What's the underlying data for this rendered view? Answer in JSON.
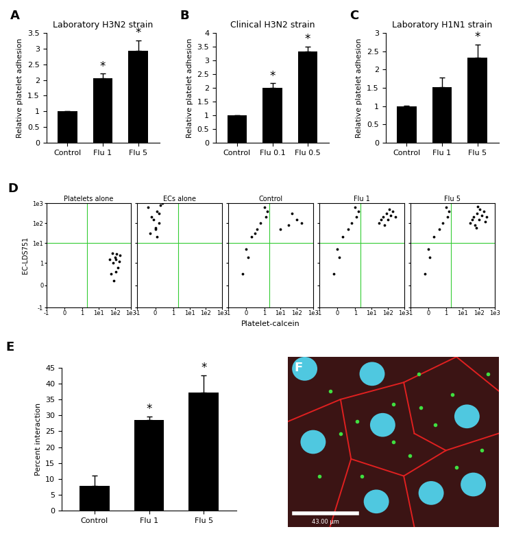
{
  "chart_data": [
    {
      "type": "bar",
      "panel": "A",
      "title": "Laboratory H3N2 strain",
      "ylabel": "Relative platelet adhesion",
      "categories": [
        "Control",
        "Flu 1",
        "Flu 5"
      ],
      "values": [
        1.0,
        2.05,
        2.93
      ],
      "errors": [
        0.01,
        0.15,
        0.33
      ],
      "color": "#000000",
      "ylim": [
        0,
        3.5
      ],
      "yticks": [
        0,
        0.5,
        1,
        1.5,
        2,
        2.5,
        3,
        3.5
      ],
      "annotations": [
        {
          "category": "Flu 1",
          "text": "*"
        },
        {
          "category": "Flu 5",
          "text": "*"
        }
      ]
    },
    {
      "type": "bar",
      "panel": "B",
      "title": "Clinical H3N2 strain",
      "ylabel": "Relative platelet adhesion",
      "categories": [
        "Control",
        "Flu 0.1",
        "Flu 0.5"
      ],
      "values": [
        1.0,
        2.0,
        3.33
      ],
      "errors": [
        0.01,
        0.17,
        0.17
      ],
      "color": "#000000",
      "ylim": [
        0,
        4
      ],
      "yticks": [
        0,
        0.5,
        1,
        1.5,
        2,
        2.5,
        3,
        3.5,
        4
      ],
      "annotations": [
        {
          "category": "Flu 0.1",
          "text": "*"
        },
        {
          "category": "Flu 0.5",
          "text": "*"
        }
      ]
    },
    {
      "type": "bar",
      "panel": "C",
      "title": "Laboratory H1N1 strain",
      "ylabel": "Relative platelet adhesion",
      "categories": [
        "Control",
        "Flu 1",
        "Flu 5"
      ],
      "values": [
        1.0,
        1.52,
        2.32
      ],
      "errors": [
        0.01,
        0.27,
        0.37
      ],
      "color": "#000000",
      "ylim": [
        0,
        3
      ],
      "yticks": [
        0,
        0.5,
        1,
        1.5,
        2,
        2.5,
        3
      ],
      "annotations": [
        {
          "category": "Flu 5",
          "text": "*"
        }
      ]
    },
    {
      "type": "scatter",
      "panel": "D",
      "title": "Platelets alone",
      "ylabel": "EC-LDS751",
      "log": true,
      "color": "#000000",
      "x": [
        60,
        80,
        100,
        120,
        150,
        90,
        200,
        70,
        110,
        130,
        180,
        50
      ],
      "values": [
        0.5,
        1,
        2,
        1.5,
        0.8,
        0.2,
        2.5,
        3,
        0.6,
        2.8,
        1.2,
        1.5
      ],
      "xlim": [
        -1,
        1000
      ],
      "ylim": [
        -1,
        1000
      ],
      "gates": {
        "x": 2,
        "y": 10
      },
      "xticks": [
        -1,
        0,
        1,
        {
          "value": 10,
          "label": "1e1"
        },
        {
          "value": 100,
          "label": "1e2"
        },
        {
          "value": 1000,
          "label": "1e3"
        }
      ],
      "yticks": [
        -1,
        0,
        1,
        {
          "value": 10,
          "label": "1e1"
        },
        {
          "value": 100,
          "label": "1e2"
        },
        {
          "value": 1000,
          "label": "1e3"
        }
      ]
    },
    {
      "type": "scatter",
      "title": "ECs alone",
      "log": true,
      "color": "#000000",
      "tick_labels": "x",
      "x": [
        -0.3,
        0,
        0.2,
        -0.2,
        0.1,
        0.3,
        -0.1,
        0,
        0.2,
        -0.4,
        0.1,
        0.4
      ],
      "values": [
        30,
        60,
        100,
        200,
        400,
        800,
        150,
        50,
        300,
        600,
        20,
        1000
      ],
      "xlim": [
        -1,
        1000
      ],
      "ylim": [
        -1,
        1000
      ],
      "gates": {
        "x": 2,
        "y": 10
      },
      "xticks": [
        -1,
        0,
        1,
        {
          "value": 10,
          "label": "1e1"
        },
        {
          "value": 100,
          "label": "1e2"
        },
        {
          "value": 1000,
          "label": "1e3"
        }
      ],
      "yticks": [
        -1,
        0,
        1,
        10,
        100,
        1000
      ]
    },
    {
      "type": "scatter",
      "title": "Control",
      "xlabel": "Platelet-calcein",
      "log": true,
      "color": "#000000",
      "tick_labels": "x",
      "x": [
        0,
        0.3,
        0.6,
        0.8,
        1.2,
        1.5,
        0.1,
        -0.2,
        1,
        0.5,
        30,
        100,
        50,
        200,
        10
      ],
      "values": [
        5,
        20,
        50,
        100,
        200,
        400,
        2,
        0.5,
        600,
        30,
        80,
        150,
        300,
        100,
        50
      ],
      "xlim": [
        -1,
        1000
      ],
      "ylim": [
        -1,
        1000
      ],
      "gates": {
        "x": 2,
        "y": 10
      },
      "xticks": [
        -1,
        0,
        1,
        {
          "value": 10,
          "label": "1e1"
        },
        {
          "value": 100,
          "label": "1e2"
        },
        {
          "value": 1000,
          "label": "1e3"
        }
      ],
      "yticks": [
        -1,
        0,
        1,
        10,
        100,
        1000
      ]
    },
    {
      "type": "scatter",
      "title": "Flu 1",
      "log": true,
      "color": "#000000",
      "tick_labels": "x",
      "x": [
        0,
        0.3,
        0.6,
        0.8,
        1.2,
        1.5,
        0.1,
        -0.2,
        1,
        30,
        50,
        80,
        100,
        150,
        200,
        60,
        120,
        40,
        300
      ],
      "values": [
        5,
        20,
        50,
        100,
        200,
        400,
        2,
        0.5,
        600,
        100,
        200,
        300,
        150,
        250,
        400,
        80,
        500,
        150,
        200
      ],
      "xlim": [
        -1,
        1000
      ],
      "ylim": [
        -1,
        1000
      ],
      "gates": {
        "x": 2,
        "y": 10
      },
      "xticks": [
        -1,
        0,
        1,
        {
          "value": 10,
          "label": "1e1"
        },
        {
          "value": 100,
          "label": "1e2"
        },
        {
          "value": 1000,
          "label": "1e3"
        }
      ],
      "yticks": [
        -1,
        0,
        1,
        10,
        100,
        1000
      ]
    },
    {
      "type": "scatter",
      "title": "Flu 5",
      "log": true,
      "color": "#000000",
      "tick_labels": "x",
      "x": [
        0,
        0.3,
        0.6,
        0.8,
        1.2,
        1.5,
        0.1,
        -0.2,
        1,
        30,
        50,
        80,
        100,
        150,
        200,
        60,
        120,
        40,
        300,
        70,
        250,
        90
      ],
      "values": [
        5,
        20,
        50,
        100,
        200,
        400,
        2,
        0.5,
        600,
        100,
        200,
        300,
        150,
        250,
        400,
        80,
        500,
        150,
        200,
        60,
        120,
        700
      ],
      "xlim": [
        -1,
        1000
      ],
      "ylim": [
        -1,
        1000
      ],
      "gates": {
        "x": 2,
        "y": 10
      },
      "xticks": [
        -1,
        0,
        1,
        {
          "value": 10,
          "label": "1e1"
        },
        {
          "value": 100,
          "label": "1e2"
        },
        {
          "value": 1000,
          "label": "1e3"
        }
      ],
      "yticks": [
        -1,
        0,
        1,
        10,
        100,
        1000
      ]
    },
    {
      "type": "bar",
      "panel": "E",
      "ylabel": "Percent interaction",
      "categories": [
        "Control",
        "Flu 1",
        "Flu 5"
      ],
      "values": [
        7.7,
        28.5,
        37.2
      ],
      "errors": [
        3.3,
        1.2,
        5.5
      ],
      "color": "#000000",
      "ylim": [
        0,
        45
      ],
      "yticks": [
        0,
        5,
        10,
        15,
        20,
        25,
        30,
        35,
        40,
        45
      ],
      "annotations": [
        {
          "category": "Flu 1",
          "text": "*"
        },
        {
          "category": "Flu 5",
          "text": "*"
        }
      ]
    },
    {
      "type": "image",
      "panel": "F",
      "scale_bar": "43.00 µm"
    }
  ]
}
